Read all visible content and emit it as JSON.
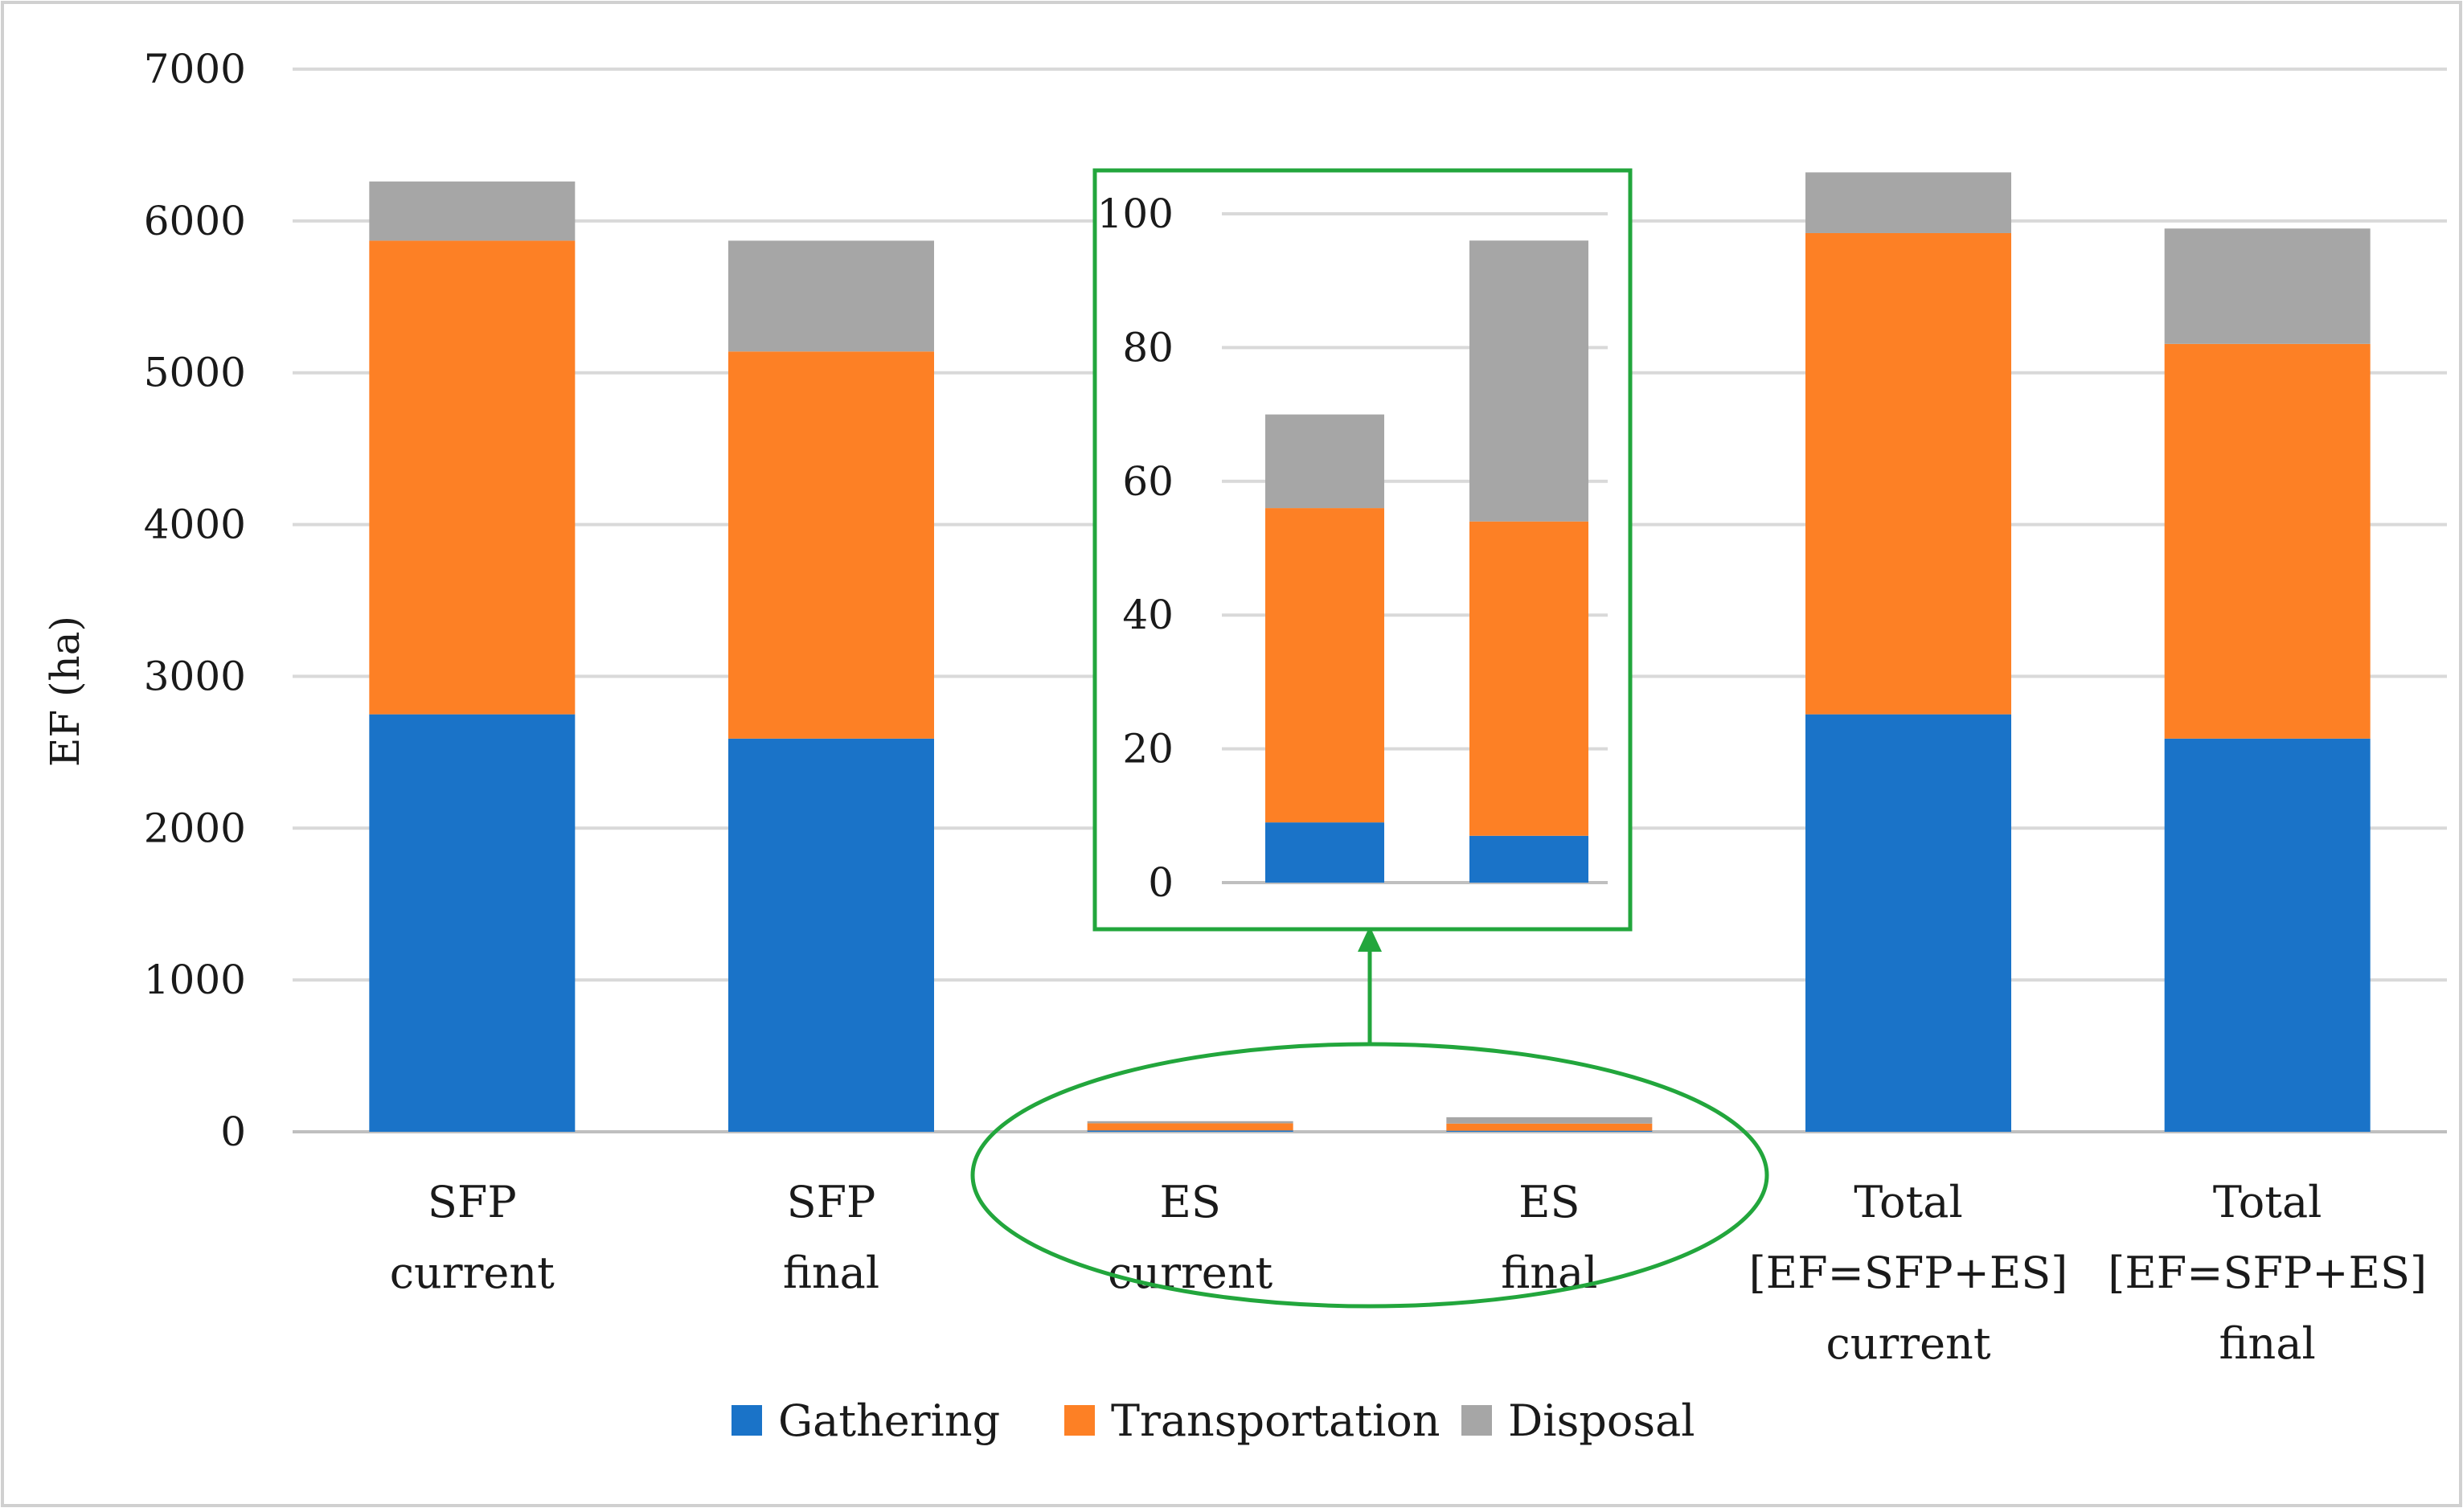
{
  "chart_data": [
    {
      "type": "bar",
      "stacked": true,
      "categories": [
        [
          "SFP",
          "current"
        ],
        [
          "SFP",
          "final"
        ],
        [
          "ES",
          "current"
        ],
        [
          "ES",
          "final"
        ],
        [
          "Total",
          "[EF=SFP+ES]",
          "current"
        ],
        [
          "Total",
          "[EF=SFP+ES]",
          "final"
        ]
      ],
      "series": [
        {
          "name": "Gathering",
          "color": "#1a73c8",
          "values": [
            2750,
            2590,
            9,
            7,
            2750,
            2590
          ]
        },
        {
          "name": "Transportation",
          "color": "#fd8025",
          "values": [
            3120,
            2550,
            47,
            47,
            3170,
            2600
          ]
        },
        {
          "name": "Disposal",
          "color": "#a6a6a6",
          "values": [
            390,
            730,
            14,
            42,
            400,
            760
          ]
        }
      ],
      "ylabel": "EF (ha)",
      "ylim": [
        0,
        7000
      ],
      "yticks": [
        0,
        1000,
        2000,
        3000,
        4000,
        5000,
        6000,
        7000
      ],
      "grid": true,
      "legend_position": "bottom"
    },
    {
      "type": "bar",
      "stacked": true,
      "inset": true,
      "categories": [
        "ES current",
        "ES final"
      ],
      "series": [
        {
          "name": "Gathering",
          "color": "#1a73c8",
          "values": [
            9,
            7
          ]
        },
        {
          "name": "Transportation",
          "color": "#fd8025",
          "values": [
            47,
            47
          ]
        },
        {
          "name": "Disposal",
          "color": "#a6a6a6",
          "values": [
            14,
            42
          ]
        }
      ],
      "ylim": [
        0,
        100
      ],
      "yticks": [
        0,
        20,
        40,
        60,
        80,
        100
      ],
      "highlight_color": "#22a63c"
    }
  ]
}
